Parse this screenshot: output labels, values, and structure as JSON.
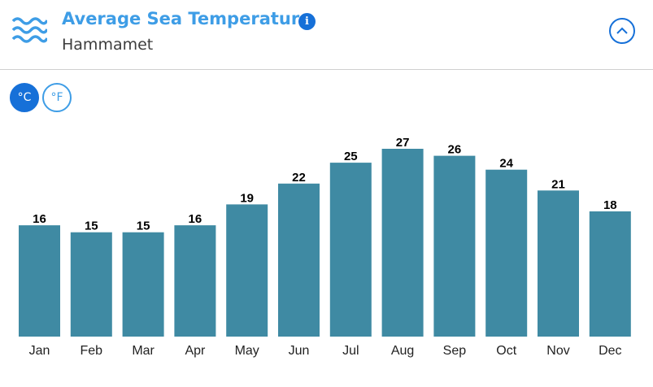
{
  "header": {
    "title": "Average Sea Temperature",
    "subtitle": "Hammamet",
    "info_icon": "info-icon",
    "wave_icon": "waves-icon",
    "collapse_icon": "chevron-up-icon"
  },
  "units": {
    "celsius": "°C",
    "fahrenheit": "°F",
    "selected": "°C"
  },
  "colors": {
    "bar": "#3f8aa3",
    "accent": "#1670d8",
    "title": "#3e9de6"
  },
  "chart_data": {
    "type": "bar",
    "categories": [
      "Jan",
      "Feb",
      "Mar",
      "Apr",
      "May",
      "Jun",
      "Jul",
      "Aug",
      "Sep",
      "Oct",
      "Nov",
      "Dec"
    ],
    "values": [
      16,
      15,
      15,
      16,
      19,
      22,
      25,
      27,
      26,
      24,
      21,
      18
    ],
    "labels": [
      "16",
      "15",
      "15",
      "16",
      "19",
      "22",
      "25",
      "27",
      "26",
      "24",
      "21",
      "18"
    ],
    "ylim": [
      0,
      27
    ],
    "grid": false,
    "legend": "none"
  }
}
